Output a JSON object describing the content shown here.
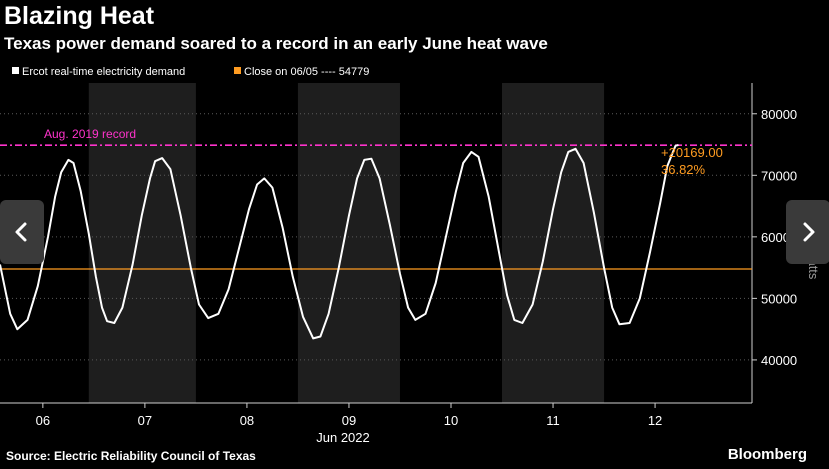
{
  "title": "Blazing Heat",
  "subtitle": "Texas power demand soared to a record in an early June heat wave",
  "source": "Source: Electric Reliability Council of Texas",
  "brand": "Bloomberg",
  "colors": {
    "background": "#000000",
    "demand_line": "#ffffff",
    "close_line": "#ff9c21",
    "record_line": "#ff33cc",
    "weekday_shade": "#1e1e1e",
    "nav_button": "#3a3a3a"
  },
  "nav": {
    "prev_icon": "chevron-left-icon",
    "next_icon": "chevron-right-icon"
  },
  "chart_data": {
    "type": "line",
    "x_unit": "days (June 2022)",
    "x_range": [
      5.58,
      12.95
    ],
    "x_ticks": [
      6,
      7,
      8,
      9,
      10,
      11,
      12
    ],
    "x_tick_labels": [
      "06",
      "07",
      "08",
      "09",
      "10",
      "11",
      "12"
    ],
    "x_sublabel": "Jun 2022",
    "ylabel": "Megawatts",
    "ylim": [
      33000,
      85000
    ],
    "y_ticks": [
      40000,
      50000,
      60000,
      70000,
      80000
    ],
    "y_tick_labels": [
      "40000",
      "50000",
      "60000",
      "70000",
      "80000"
    ],
    "grid": "horizontal dotted",
    "shaded_days": [
      [
        6.45,
        7.5
      ],
      [
        8.5,
        9.5
      ],
      [
        10.5,
        11.5
      ]
    ],
    "legend_position": "top-left",
    "legend": [
      {
        "label": "Ercot real-time electricity demand",
        "color": "#ffffff"
      },
      {
        "label": "Close on 06/05 ---- 54779",
        "color": "#ff9c21"
      }
    ],
    "series": [
      {
        "name": "Ercot real-time electricity demand",
        "color": "#ffffff",
        "points": [
          [
            5.58,
            55500
          ],
          [
            5.68,
            47500
          ],
          [
            5.75,
            45000
          ],
          [
            5.85,
            46500
          ],
          [
            5.95,
            52000
          ],
          [
            6.05,
            60000
          ],
          [
            6.12,
            66500
          ],
          [
            6.18,
            70500
          ],
          [
            6.25,
            72500
          ],
          [
            6.3,
            72000
          ],
          [
            6.37,
            67500
          ],
          [
            6.45,
            60500
          ],
          [
            6.52,
            53500
          ],
          [
            6.58,
            48500
          ],
          [
            6.63,
            46300
          ],
          [
            6.7,
            46000
          ],
          [
            6.78,
            48500
          ],
          [
            6.88,
            55500
          ],
          [
            6.97,
            63500
          ],
          [
            7.05,
            69500
          ],
          [
            7.1,
            72300
          ],
          [
            7.17,
            72800
          ],
          [
            7.25,
            71000
          ],
          [
            7.35,
            63500
          ],
          [
            7.45,
            55000
          ],
          [
            7.53,
            49000
          ],
          [
            7.62,
            46800
          ],
          [
            7.72,
            47500
          ],
          [
            7.82,
            51500
          ],
          [
            7.92,
            58000
          ],
          [
            8.02,
            64500
          ],
          [
            8.1,
            68500
          ],
          [
            8.17,
            69500
          ],
          [
            8.25,
            68000
          ],
          [
            8.35,
            61500
          ],
          [
            8.45,
            53500
          ],
          [
            8.55,
            47000
          ],
          [
            8.65,
            43500
          ],
          [
            8.72,
            43800
          ],
          [
            8.8,
            47500
          ],
          [
            8.9,
            55000
          ],
          [
            9.0,
            63500
          ],
          [
            9.08,
            69500
          ],
          [
            9.15,
            72500
          ],
          [
            9.22,
            72700
          ],
          [
            9.3,
            69500
          ],
          [
            9.4,
            62000
          ],
          [
            9.5,
            54000
          ],
          [
            9.58,
            48500
          ],
          [
            9.65,
            46500
          ],
          [
            9.75,
            47500
          ],
          [
            9.85,
            52500
          ],
          [
            9.95,
            60000
          ],
          [
            10.05,
            67500
          ],
          [
            10.12,
            72000
          ],
          [
            10.2,
            73800
          ],
          [
            10.27,
            73000
          ],
          [
            10.37,
            66500
          ],
          [
            10.47,
            57500
          ],
          [
            10.55,
            50500
          ],
          [
            10.62,
            46500
          ],
          [
            10.7,
            46000
          ],
          [
            10.8,
            49000
          ],
          [
            10.9,
            56000
          ],
          [
            11.0,
            64500
          ],
          [
            11.08,
            70500
          ],
          [
            11.15,
            73800
          ],
          [
            11.22,
            74300
          ],
          [
            11.3,
            72000
          ],
          [
            11.4,
            64000
          ],
          [
            11.5,
            55000
          ],
          [
            11.58,
            48500
          ],
          [
            11.65,
            45800
          ],
          [
            11.75,
            46000
          ],
          [
            11.85,
            50000
          ],
          [
            11.95,
            57500
          ],
          [
            12.05,
            65500
          ],
          [
            12.12,
            71500
          ],
          [
            12.2,
            74800
          ],
          [
            12.23,
            74948
          ]
        ]
      }
    ],
    "reference_lines": [
      {
        "name": "Close on 06/05",
        "value": 54779,
        "color": "#ff9c21"
      },
      {
        "name": "Aug. 2019 record",
        "value": 74900,
        "color": "#ff33cc"
      }
    ],
    "annotations": [
      {
        "text": "Aug. 2019 record",
        "color": "#ff33cc"
      },
      {
        "text": "+20169.00",
        "color": "#ff9c21"
      },
      {
        "text": "36.82%",
        "color": "#ff9c21"
      }
    ]
  }
}
